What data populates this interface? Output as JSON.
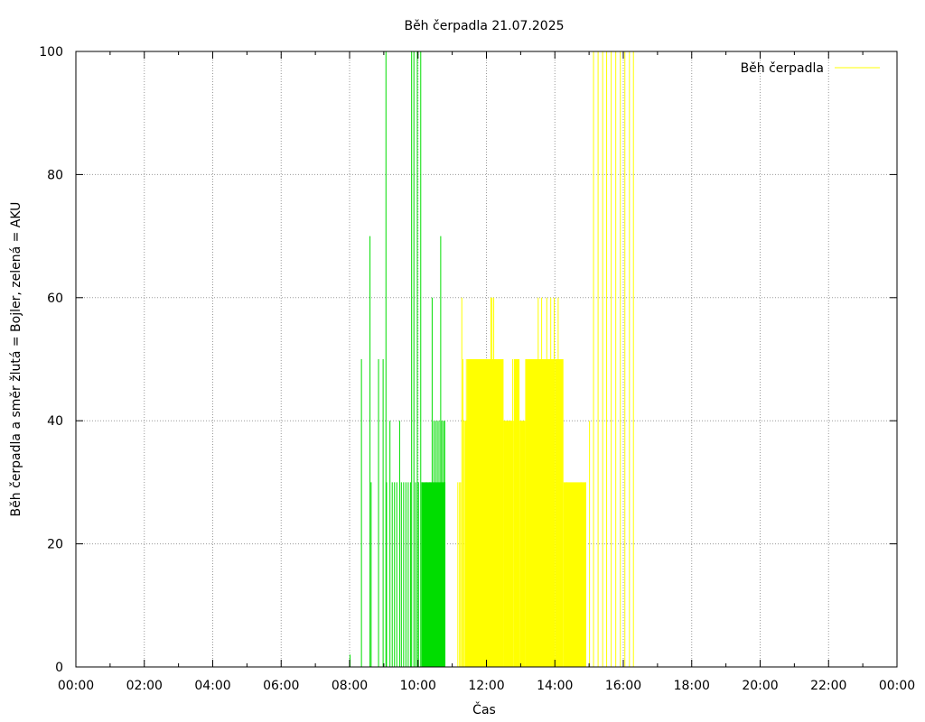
{
  "chart_data": {
    "type": "bar",
    "title": "Běh čerpadla 21.07.2025",
    "xlabel": "Čas",
    "ylabel": "Běh čerpadla a směr žlutá = Bojler, zelená = AKU",
    "xlim": [
      "00:00",
      "24:00"
    ],
    "ylim": [
      0,
      100
    ],
    "grid": true,
    "legend_position": "top-right",
    "x_ticks": [
      "00:00",
      "02:00",
      "04:00",
      "06:00",
      "08:00",
      "10:00",
      "12:00",
      "14:00",
      "16:00",
      "18:00",
      "20:00",
      "22:00",
      "00:00"
    ],
    "y_ticks": [
      0,
      20,
      40,
      60,
      80,
      100
    ],
    "colors": {
      "bojler": "#ffff00",
      "aku": "#00dd00",
      "grid": "#999999"
    },
    "series": [
      {
        "name": "Běh čerpadla",
        "color": "#ffff00",
        "lines": [
          {
            "t": "11:09",
            "v": 30
          },
          {
            "t": "11:12",
            "v": 30
          },
          {
            "t": "11:14",
            "v": 30
          },
          {
            "t": "11:16",
            "v": 60
          },
          {
            "t": "11:18",
            "v": 50
          },
          {
            "t": "11:20",
            "v": 40
          },
          {
            "t": "11:24",
            "v": 50
          },
          {
            "t": "11:30",
            "v": 40
          },
          {
            "t": "11:40",
            "v": 50
          },
          {
            "t": "11:50",
            "v": 40
          },
          {
            "t": "12:05",
            "v": 50
          },
          {
            "t": "12:07",
            "v": 60
          },
          {
            "t": "12:09",
            "v": 60
          },
          {
            "t": "12:12",
            "v": 60
          },
          {
            "t": "12:30",
            "v": 40
          },
          {
            "t": "12:45",
            "v": 50
          },
          {
            "t": "12:50",
            "v": 40
          },
          {
            "t": "13:10",
            "v": 50
          },
          {
            "t": "13:30",
            "v": 60
          },
          {
            "t": "13:36",
            "v": 60
          },
          {
            "t": "13:40",
            "v": 50
          },
          {
            "t": "13:45",
            "v": 60
          },
          {
            "t": "13:52",
            "v": 60
          },
          {
            "t": "13:58",
            "v": 60
          },
          {
            "t": "14:05",
            "v": 60
          },
          {
            "t": "14:20",
            "v": 30
          },
          {
            "t": "14:45",
            "v": 30
          },
          {
            "t": "15:00",
            "v": 40
          },
          {
            "t": "15:07",
            "v": 100
          },
          {
            "t": "15:15",
            "v": 100
          },
          {
            "t": "15:23",
            "v": 100
          },
          {
            "t": "15:30",
            "v": 100
          },
          {
            "t": "15:38",
            "v": 100
          },
          {
            "t": "15:46",
            "v": 100
          },
          {
            "t": "15:54",
            "v": 100
          },
          {
            "t": "16:02",
            "v": 100
          },
          {
            "t": "16:10",
            "v": 100
          },
          {
            "t": "16:17",
            "v": 100
          }
        ],
        "blocks": [
          {
            "from": "11:22",
            "to": "11:58",
            "v": 40
          },
          {
            "from": "11:26",
            "to": "12:00",
            "v": 50
          },
          {
            "from": "12:00",
            "to": "12:30",
            "v": 50
          },
          {
            "from": "12:30",
            "to": "12:48",
            "v": 40
          },
          {
            "from": "12:48",
            "to": "12:58",
            "v": 50
          },
          {
            "from": "12:58",
            "to": "13:08",
            "v": 40
          },
          {
            "from": "13:08",
            "to": "14:00",
            "v": 50
          },
          {
            "from": "14:00",
            "to": "14:15",
            "v": 50
          },
          {
            "from": "14:15",
            "to": "14:55",
            "v": 30
          }
        ]
      },
      {
        "name": "",
        "color": "#00dd00",
        "lines": [
          {
            "t": "08:00",
            "v": 2
          },
          {
            "t": "08:20",
            "v": 50
          },
          {
            "t": "08:35",
            "v": 70
          },
          {
            "t": "08:37",
            "v": 30
          },
          {
            "t": "08:50",
            "v": 50
          },
          {
            "t": "08:58",
            "v": 50
          },
          {
            "t": "09:03",
            "v": 100
          },
          {
            "t": "09:04",
            "v": 30
          },
          {
            "t": "09:10",
            "v": 40
          },
          {
            "t": "09:14",
            "v": 30
          },
          {
            "t": "09:18",
            "v": 30
          },
          {
            "t": "09:22",
            "v": 30
          },
          {
            "t": "09:27",
            "v": 40
          },
          {
            "t": "09:30",
            "v": 30
          },
          {
            "t": "09:34",
            "v": 30
          },
          {
            "t": "09:38",
            "v": 30
          },
          {
            "t": "09:42",
            "v": 30
          },
          {
            "t": "09:46",
            "v": 30
          },
          {
            "t": "09:48",
            "v": 100
          },
          {
            "t": "09:52",
            "v": 100
          },
          {
            "t": "09:55",
            "v": 30
          },
          {
            "t": "09:58",
            "v": 100
          },
          {
            "t": "10:00",
            "v": 30
          },
          {
            "t": "10:04",
            "v": 100
          },
          {
            "t": "10:06",
            "v": 30
          },
          {
            "t": "10:14",
            "v": 30
          },
          {
            "t": "10:20",
            "v": 30
          },
          {
            "t": "10:24",
            "v": 60
          },
          {
            "t": "10:27",
            "v": 40
          },
          {
            "t": "10:30",
            "v": 40
          },
          {
            "t": "10:33",
            "v": 40
          },
          {
            "t": "10:36",
            "v": 40
          },
          {
            "t": "10:39",
            "v": 70
          },
          {
            "t": "10:41",
            "v": 40
          },
          {
            "t": "10:44",
            "v": 40
          },
          {
            "t": "10:46",
            "v": 40
          }
        ],
        "blocks": [
          {
            "from": "10:06",
            "to": "10:48",
            "v": 30
          }
        ]
      }
    ]
  }
}
